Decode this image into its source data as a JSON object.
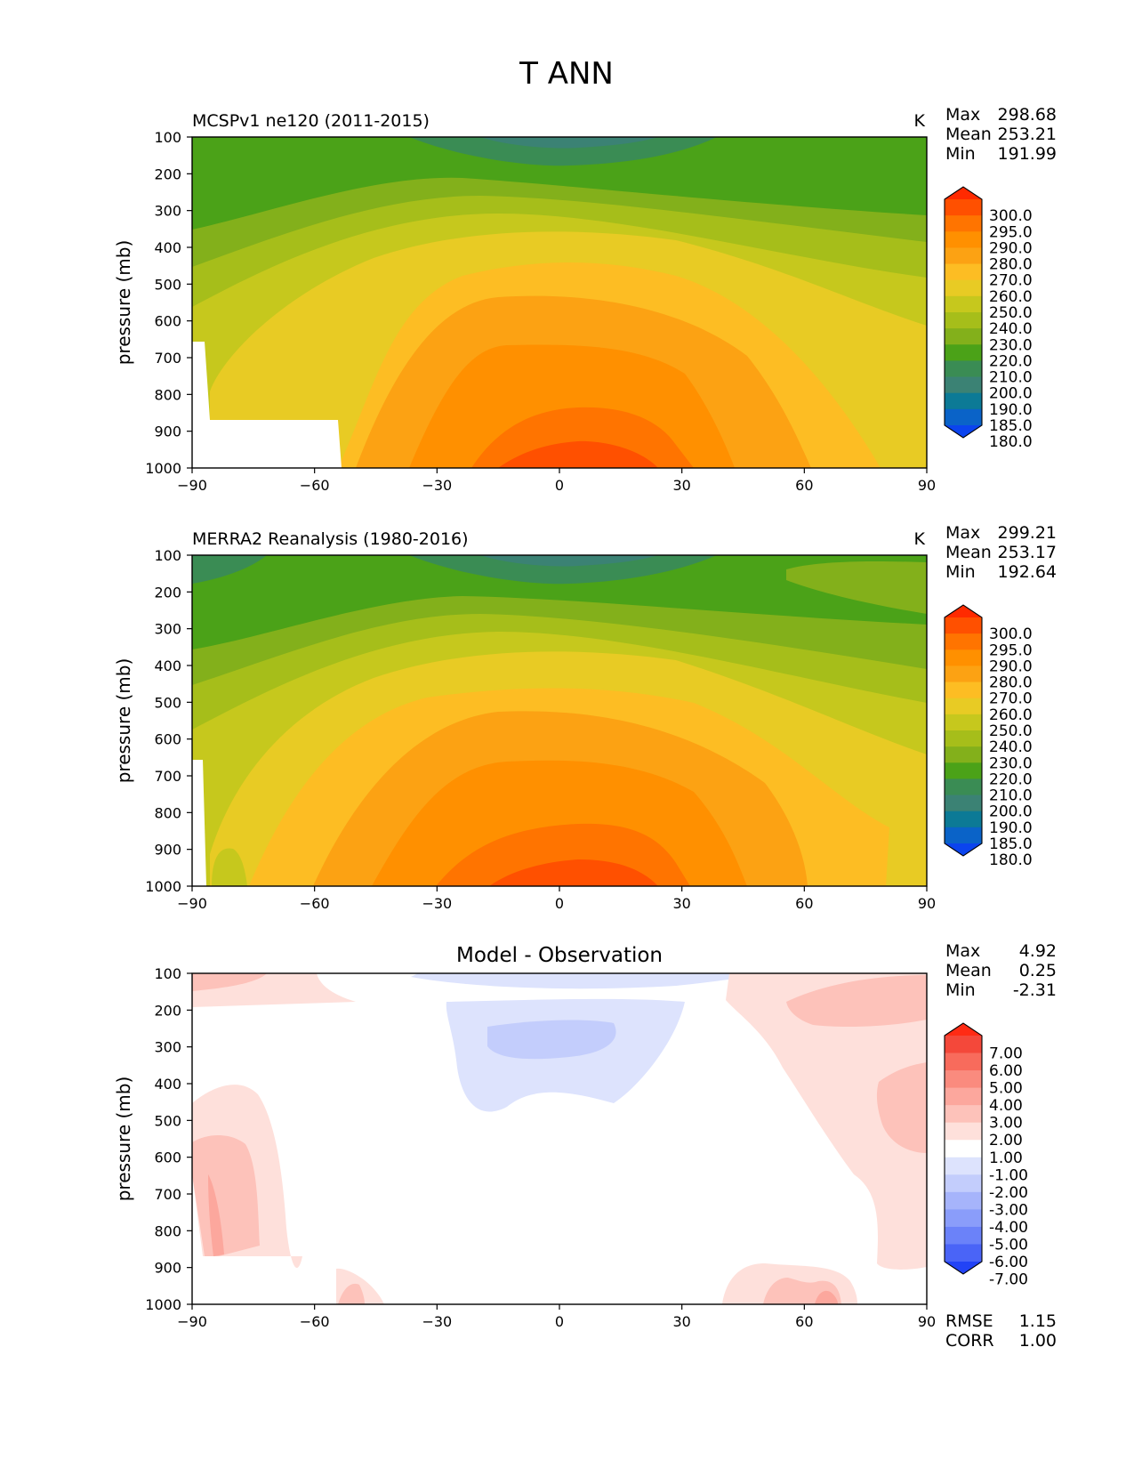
{
  "figure_title": "T ANN",
  "chart_data": [
    {
      "type": "heatmap",
      "title": "MCSPv1 ne120 (2011-2015)",
      "units": "K",
      "ylabel": "pressure (mb)",
      "xlabel": "",
      "xlim": [
        -90,
        90
      ],
      "ylim": [
        1000,
        100
      ],
      "x_ticks": [
        "−90",
        "−60",
        "−30",
        "0",
        "30",
        "60",
        "90"
      ],
      "y_ticks": [
        "100",
        "200",
        "300",
        "400",
        "500",
        "600",
        "700",
        "800",
        "900",
        "1000"
      ],
      "stats": [
        {
          "label": "Max",
          "value": "298.68"
        },
        {
          "label": "Mean",
          "value": "253.21"
        },
        {
          "label": "Min",
          "value": "191.99"
        }
      ],
      "colorbar_levels": [
        "300.0",
        "295.0",
        "290.0",
        "280.0",
        "270.0",
        "260.0",
        "250.0",
        "240.0",
        "230.0",
        "220.0",
        "210.0",
        "200.0",
        "190.0",
        "185.0",
        "180.0"
      ],
      "colorbar_colors": [
        "#ff2a00",
        "#ff5000",
        "#ff7400",
        "#ff9000",
        "#fca213",
        "#fdbd23",
        "#e8cb24",
        "#c6c81d",
        "#a6be1a",
        "#83b01b",
        "#4ba218",
        "#3a8c54",
        "#3b8274",
        "#0c7a96",
        "#0a63c8",
        "#0b44ee"
      ]
    },
    {
      "type": "heatmap",
      "title": "MERRA2 Reanalysis (1980-2016)",
      "units": "K",
      "ylabel": "pressure (mb)",
      "xlabel": "",
      "xlim": [
        -90,
        90
      ],
      "ylim": [
        1000,
        100
      ],
      "x_ticks": [
        "−90",
        "−60",
        "−30",
        "0",
        "30",
        "60",
        "90"
      ],
      "y_ticks": [
        "100",
        "200",
        "300",
        "400",
        "500",
        "600",
        "700",
        "800",
        "900",
        "1000"
      ],
      "stats": [
        {
          "label": "Max",
          "value": "299.21"
        },
        {
          "label": "Mean",
          "value": "253.17"
        },
        {
          "label": "Min",
          "value": "192.64"
        }
      ],
      "colorbar_levels": [
        "300.0",
        "295.0",
        "290.0",
        "280.0",
        "270.0",
        "260.0",
        "250.0",
        "240.0",
        "230.0",
        "220.0",
        "210.0",
        "200.0",
        "190.0",
        "185.0",
        "180.0"
      ],
      "colorbar_colors": [
        "#ff2a00",
        "#ff5000",
        "#ff7400",
        "#ff9000",
        "#fca213",
        "#fdbd23",
        "#e8cb24",
        "#c6c81d",
        "#a6be1a",
        "#83b01b",
        "#4ba218",
        "#3a8c54",
        "#3b8274",
        "#0c7a96",
        "#0a63c8",
        "#0b44ee"
      ]
    },
    {
      "type": "heatmap",
      "title": "Model - Observation",
      "units": "",
      "ylabel": "pressure (mb)",
      "xlabel": "",
      "xlim": [
        -90,
        90
      ],
      "ylim": [
        1000,
        100
      ],
      "x_ticks": [
        "−90",
        "−60",
        "−30",
        "0",
        "30",
        "60",
        "90"
      ],
      "y_ticks": [
        "100",
        "200",
        "300",
        "400",
        "500",
        "600",
        "700",
        "800",
        "900",
        "1000"
      ],
      "stats": [
        {
          "label": "Max",
          "value": "4.92"
        },
        {
          "label": "Mean",
          "value": "0.25"
        },
        {
          "label": "Min",
          "value": "-2.31"
        }
      ],
      "metrics": [
        {
          "label": "RMSE",
          "value": "1.15"
        },
        {
          "label": "CORR",
          "value": "1.00"
        }
      ],
      "colorbar_levels": [
        "7.00",
        "6.00",
        "5.00",
        "4.00",
        "3.00",
        "2.00",
        "1.00",
        "-1.00",
        "-2.00",
        "-3.00",
        "-4.00",
        "-5.00",
        "-6.00",
        "-7.00"
      ],
      "colorbar_colors": [
        "#ff2b14",
        "#f4483a",
        "#f86b5c",
        "#fa8b7e",
        "#fca79d",
        "#fdc2ba",
        "#fee0db",
        "#ffffff",
        "#dde3fd",
        "#c3cdfc",
        "#a6b4fb",
        "#8a9dfa",
        "#6b82f9",
        "#4a64f7",
        "#2243f6"
      ]
    }
  ]
}
